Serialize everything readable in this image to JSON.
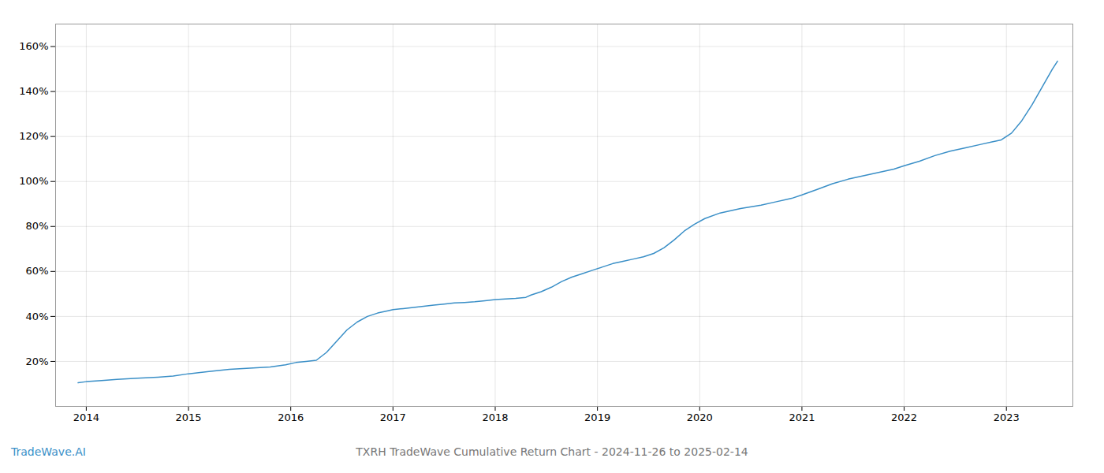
{
  "chart_data": {
    "type": "line",
    "title": "TXRH TradeWave Cumulative Return Chart - 2024-11-26 to 2025-02-14",
    "annotations": [
      {
        "text": "TradeWave.AI",
        "color": "#3a8fc7"
      }
    ],
    "color": "#3a8fc7",
    "grid": true,
    "x": [
      2013.92,
      2014.0,
      2014.15,
      2014.3,
      2014.5,
      2014.7,
      2014.85,
      2015.0,
      2015.2,
      2015.4,
      2015.6,
      2015.8,
      2015.95,
      2016.05,
      2016.15,
      2016.25,
      2016.35,
      2016.45,
      2016.55,
      2016.65,
      2016.75,
      2016.85,
      2016.95,
      2017.0,
      2017.1,
      2017.2,
      2017.3,
      2017.4,
      2017.5,
      2017.6,
      2017.7,
      2017.8,
      2017.9,
      2018.0,
      2018.1,
      2018.2,
      2018.3,
      2018.35,
      2018.45,
      2018.55,
      2018.65,
      2018.75,
      2018.85,
      2018.95,
      2019.05,
      2019.15,
      2019.25,
      2019.35,
      2019.45,
      2019.55,
      2019.65,
      2019.75,
      2019.85,
      2019.95,
      2020.05,
      2020.2,
      2020.4,
      2020.6,
      2020.75,
      2020.9,
      2021.0,
      2021.15,
      2021.3,
      2021.45,
      2021.6,
      2021.75,
      2021.9,
      2022.0,
      2022.15,
      2022.3,
      2022.45,
      2022.6,
      2022.75,
      2022.85,
      2022.95,
      2023.05,
      2023.15,
      2023.25,
      2023.35,
      2023.45,
      2023.5
    ],
    "values": [
      10.5,
      11.0,
      11.5,
      12.0,
      12.5,
      13.0,
      13.5,
      14.5,
      15.5,
      16.5,
      17.0,
      17.5,
      18.5,
      19.5,
      20.0,
      20.5,
      24.0,
      29.0,
      34.0,
      37.5,
      40.0,
      41.5,
      42.5,
      43.0,
      43.5,
      44.0,
      44.5,
      45.0,
      45.5,
      46.0,
      46.2,
      46.5,
      47.0,
      47.5,
      47.8,
      48.0,
      48.5,
      49.5,
      51.0,
      53.0,
      55.5,
      57.5,
      59.0,
      60.5,
      62.0,
      63.5,
      64.5,
      65.5,
      66.5,
      68.0,
      70.5,
      74.0,
      78.0,
      81.0,
      83.5,
      86.0,
      88.0,
      89.5,
      91.0,
      92.5,
      94.0,
      96.5,
      99.0,
      101.0,
      102.5,
      104.0,
      105.5,
      107.0,
      109.0,
      111.5,
      113.5,
      115.0,
      116.5,
      117.5,
      118.5,
      121.5,
      127.0,
      134.0,
      142.0,
      150.0,
      153.5
    ],
    "xlim": [
      2013.7,
      2023.65
    ],
    "xticks": [
      2014,
      2015,
      2016,
      2017,
      2018,
      2019,
      2020,
      2021,
      2022,
      2023
    ],
    "ylim": [
      0,
      170
    ],
    "yticks": [
      {
        "value": 20,
        "label": "20%"
      },
      {
        "value": 40,
        "label": "40%"
      },
      {
        "value": 60,
        "label": "60%"
      },
      {
        "value": 80,
        "label": "80%"
      },
      {
        "value": 100,
        "label": "100%"
      },
      {
        "value": 120,
        "label": "120%"
      },
      {
        "value": 140,
        "label": "140%"
      },
      {
        "value": 160,
        "label": "160%"
      }
    ]
  }
}
